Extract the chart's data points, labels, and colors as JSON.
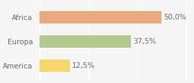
{
  "categories": [
    "America",
    "Europa",
    "Africa"
  ],
  "values": [
    12.5,
    37.5,
    50.0
  ],
  "bar_colors": [
    "#f5d76e",
    "#b5c98e",
    "#e8a97e"
  ],
  "value_labels": [
    "12,5%",
    "37,5%",
    "50,0%"
  ],
  "xlim": [
    0,
    62
  ],
  "background_color": "#f5f5f5",
  "bar_height": 0.52,
  "label_fontsize": 7.5,
  "tick_fontsize": 7.5
}
